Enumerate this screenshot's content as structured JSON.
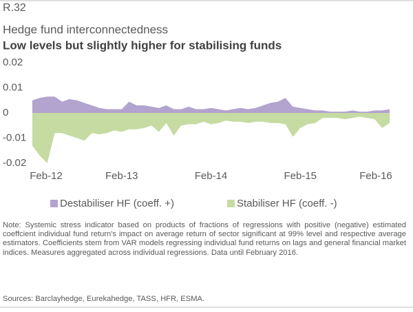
{
  "chart_data": {
    "type": "area",
    "label": "R.32",
    "title": "Hedge fund interconnectedness",
    "subtitle": "Low levels but slightly higher for stabilising funds",
    "categories": [
      "Feb-12",
      null,
      null,
      null,
      null,
      null,
      null,
      null,
      null,
      null,
      null,
      null,
      "Feb-13",
      null,
      null,
      null,
      null,
      null,
      null,
      null,
      null,
      null,
      null,
      null,
      "Feb-14",
      null,
      null,
      null,
      null,
      null,
      null,
      null,
      null,
      null,
      null,
      null,
      "Feb-15",
      null,
      null,
      null,
      null,
      null,
      null,
      null,
      null,
      null,
      null,
      null,
      "Feb-16"
    ],
    "series": [
      {
        "name": "Destabiliser HF (coeff. +)",
        "color": "#b3a3cf",
        "values": [
          0.005,
          0.006,
          0.0065,
          0.0065,
          0.0045,
          0.0055,
          0.005,
          0.004,
          0.003,
          0.002,
          0.0015,
          0.0015,
          0.0015,
          0.0045,
          0.003,
          0.003,
          0.0025,
          0.002,
          0.003,
          0.0015,
          0.0015,
          0.0025,
          0.0015,
          0.0015,
          0.002,
          0.0015,
          0.001,
          0.0015,
          0.002,
          0.0015,
          0.002,
          0.003,
          0.004,
          0.0045,
          0.006,
          0.0025,
          0.002,
          0.0015,
          0.001,
          0.001,
          0.0005,
          0.0005,
          0.0005,
          0.001,
          0.0005,
          0.0005,
          0.001,
          0.001,
          0.0015
        ]
      },
      {
        "name": "Stabiliser HF (coeff. -)",
        "color": "#c5dba2",
        "values": [
          -0.013,
          -0.017,
          -0.02,
          -0.008,
          -0.008,
          -0.009,
          -0.01,
          -0.011,
          -0.008,
          -0.0085,
          -0.008,
          -0.007,
          -0.0075,
          -0.0065,
          -0.0065,
          -0.006,
          -0.005,
          -0.0075,
          -0.004,
          -0.009,
          -0.005,
          -0.0045,
          -0.0045,
          -0.0035,
          -0.0045,
          -0.004,
          -0.003,
          -0.0035,
          -0.0035,
          -0.004,
          -0.0035,
          -0.0035,
          -0.004,
          -0.004,
          -0.0045,
          -0.0095,
          -0.006,
          -0.0045,
          -0.004,
          -0.002,
          -0.002,
          -0.002,
          -0.0025,
          -0.002,
          -0.0015,
          -0.002,
          -0.0025,
          -0.006,
          -0.004
        ]
      }
    ],
    "ylim": [
      -0.02,
      0.02
    ],
    "yticks": [
      0.02,
      0.01,
      0,
      -0.01,
      -0.02
    ],
    "grid": false,
    "legend": "bottom",
    "note": "Note: Systemic stress indicator based on products of fractions of regressions with positive (negative) estimated coeffcient individual fund return's impact on average return of sector significant at 99% level and respective average estimators. Coefficients stem from VAR models regressing individual fund returns on lags and general financial market indices. Measures aggregated across individual regressions. Data until February 2016.",
    "sources": "Sources: Barclayhedge, Eurekahedge, TASS, HFR, ESMA."
  }
}
